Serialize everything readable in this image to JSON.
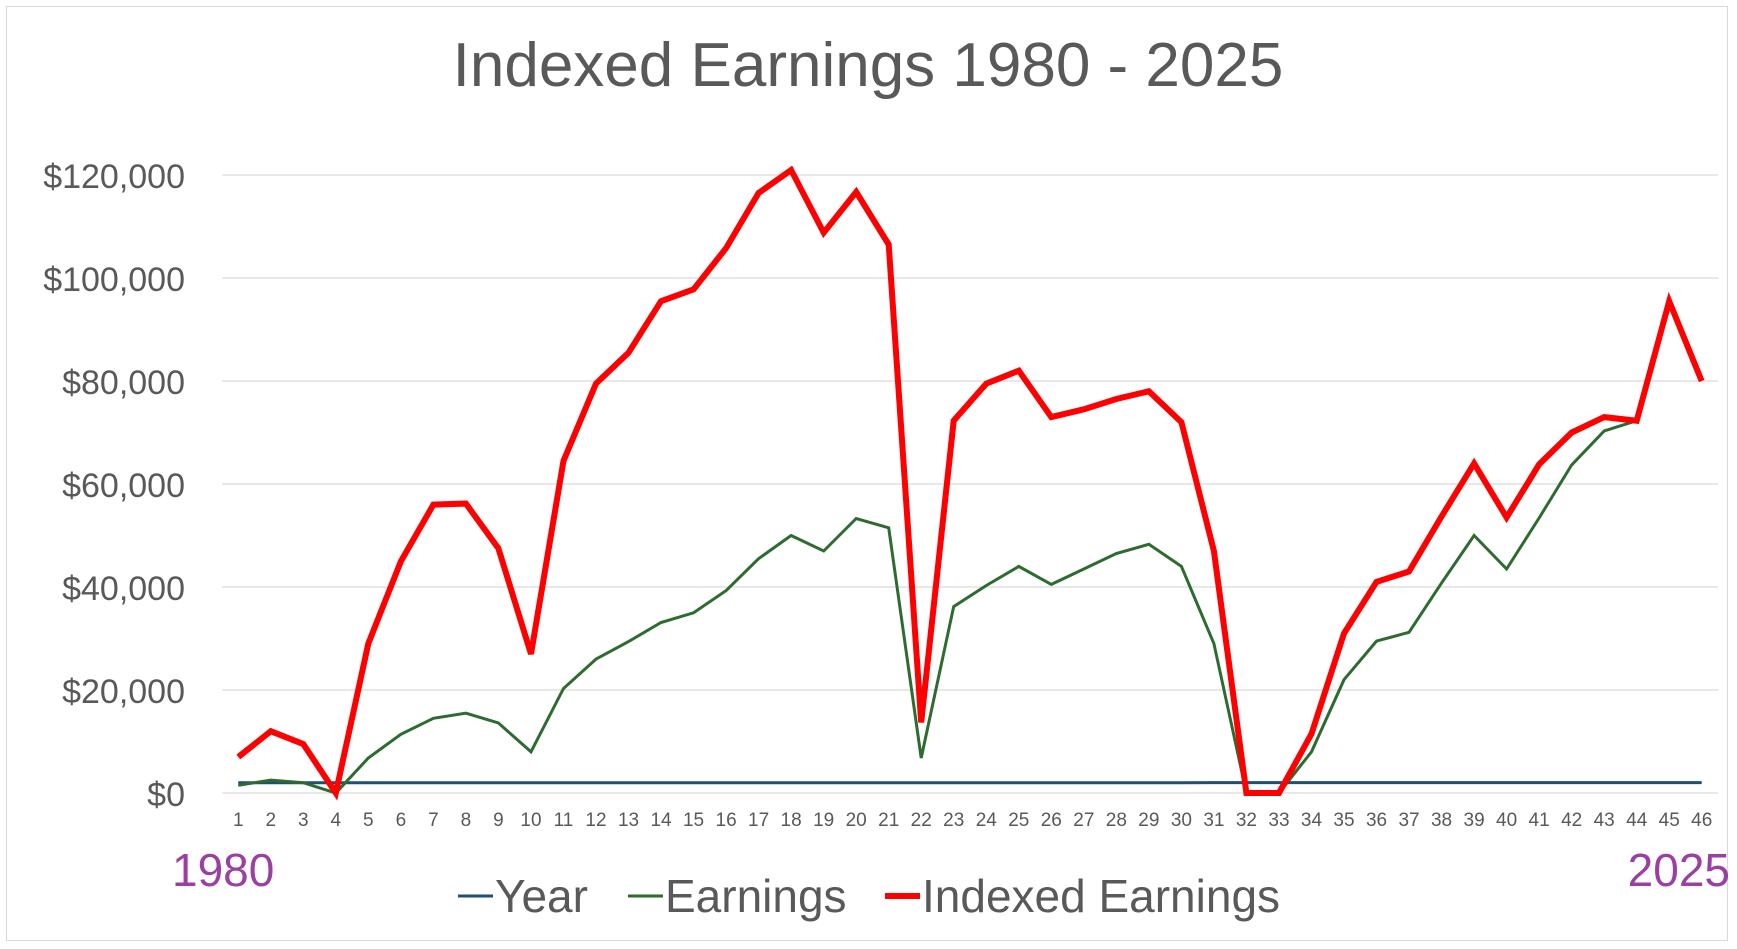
{
  "colors": {
    "year": "#1f4e79",
    "earnings": "#2e6b30",
    "indexed": "#ff0000",
    "axis_text": "#595959",
    "title": "#595959",
    "annotation": "#9b3fa3",
    "grid": "#d9d9d9"
  },
  "annotations": {
    "left": "1980",
    "right": "2025"
  },
  "chart_data": {
    "type": "line",
    "title": "Indexed Earnings 1980 - 2025",
    "xlabel": "",
    "ylabel": "",
    "x": [
      1,
      2,
      3,
      4,
      5,
      6,
      7,
      8,
      9,
      10,
      11,
      12,
      13,
      14,
      15,
      16,
      17,
      18,
      19,
      20,
      21,
      22,
      23,
      24,
      25,
      26,
      27,
      28,
      29,
      30,
      31,
      32,
      33,
      34,
      35,
      36,
      37,
      38,
      39,
      40,
      41,
      42,
      43,
      44,
      45,
      46
    ],
    "ylim": [
      0,
      120000
    ],
    "yticks": [
      0,
      20000,
      40000,
      60000,
      80000,
      100000,
      120000
    ],
    "ytick_labels": [
      "$0",
      "$20,000",
      "$40,000",
      "$60,000",
      "$80,000",
      "$100,000",
      "$120,000"
    ],
    "grid": true,
    "legend_position": "bottom",
    "series": [
      {
        "name": "Year",
        "color": "#1f4e79",
        "width": 3,
        "values": [
          1980,
          1981,
          1982,
          1983,
          1984,
          1985,
          1986,
          1987,
          1988,
          1989,
          1990,
          1991,
          1992,
          1993,
          1994,
          1995,
          1996,
          1997,
          1998,
          1999,
          2000,
          2001,
          2002,
          2003,
          2004,
          2005,
          2006,
          2007,
          2008,
          2009,
          2010,
          2011,
          2012,
          2013,
          2014,
          2015,
          2016,
          2017,
          2018,
          2019,
          2020,
          2021,
          2022,
          2023,
          2024,
          2025
        ]
      },
      {
        "name": "Earnings",
        "color": "#2e6b30",
        "width": 3,
        "values": [
          1500,
          2500,
          2000,
          0,
          6800,
          11400,
          14500,
          15500,
          13600,
          8000,
          20300,
          26000,
          29400,
          33100,
          35000,
          39300,
          45500,
          50000,
          47000,
          53300,
          51500,
          6800,
          36200,
          40300,
          44000,
          40500,
          43500,
          46500,
          48300,
          44000,
          29000,
          0,
          0,
          8000,
          22000,
          29500,
          31200,
          40800,
          50000,
          43500,
          53400,
          63700,
          70300,
          72300,
          95500,
          80000
        ]
      },
      {
        "name": "Indexed Earnings",
        "color": "#ff0000",
        "width": 6,
        "values": [
          7000,
          12000,
          9500,
          0,
          29000,
          45000,
          56000,
          56200,
          47500,
          27000,
          64500,
          79500,
          85500,
          95500,
          97800,
          105800,
          116500,
          121500,
          108800,
          116700,
          106500,
          13700,
          72300,
          79500,
          82000,
          73000,
          74500,
          76500,
          78000,
          72000,
          47000,
          0,
          0,
          11500,
          31000,
          41000,
          43000,
          53700,
          64000,
          53500,
          63800,
          70000,
          73000,
          72300,
          95500,
          80000
        ]
      }
    ]
  }
}
